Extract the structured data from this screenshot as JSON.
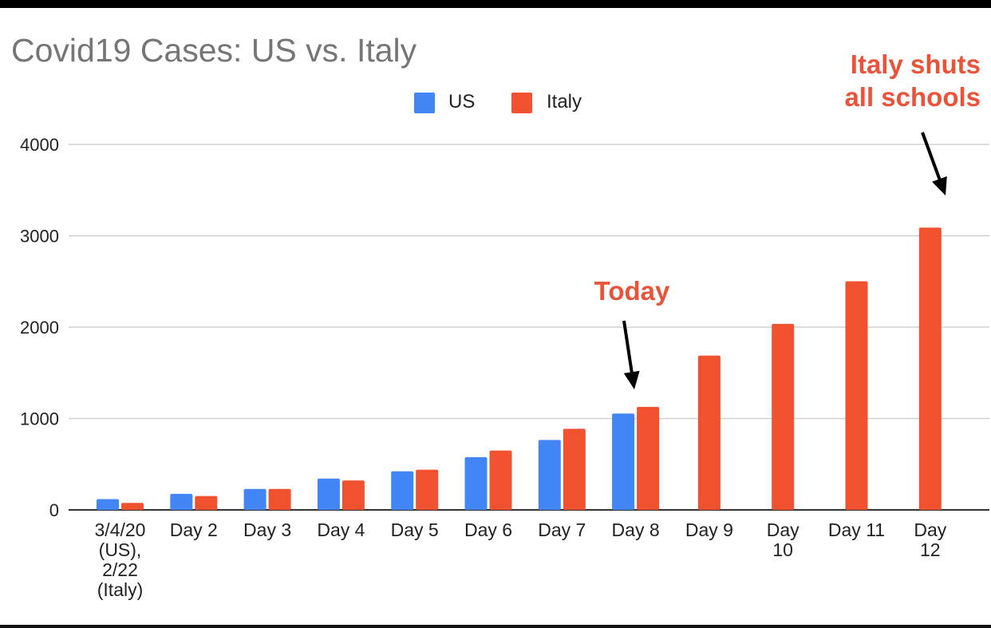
{
  "chart_data": {
    "type": "bar",
    "title": "Covid19 Cases: US vs. Italy",
    "xlabel": "",
    "ylabel": "",
    "ylim": [
      0,
      4000
    ],
    "yticks": [
      "0",
      "1000",
      "2000",
      "3000",
      "4000"
    ],
    "grid": true,
    "legend_position": "top-center",
    "categories": [
      [
        "3/4/20",
        "(US),",
        "2/22",
        "(Italy)"
      ],
      [
        "Day 2"
      ],
      [
        "Day 3"
      ],
      [
        "Day 4"
      ],
      [
        "Day 5"
      ],
      [
        "Day 6"
      ],
      [
        "Day 7"
      ],
      [
        "Day 8"
      ],
      [
        "Day 9"
      ],
      [
        "Day",
        "10"
      ],
      [
        "Day 11"
      ],
      [
        "Day",
        "12"
      ]
    ],
    "series": [
      {
        "name": "US",
        "color": "#4285f4",
        "values": [
          118,
          176,
          229,
          343,
          423,
          577,
          765,
          1055,
          null,
          null,
          null,
          null
        ]
      },
      {
        "name": "Italy",
        "color": "#f0512f",
        "values": [
          76,
          152,
          229,
          322,
          440,
          650,
          888,
          1128,
          1689,
          2036,
          2502,
          3089
        ]
      }
    ],
    "annotations": [
      {
        "lines": [
          "Today"
        ],
        "category_index": 7
      },
      {
        "lines": [
          "Italy shuts",
          "all schools"
        ],
        "category_index": 11
      }
    ]
  }
}
